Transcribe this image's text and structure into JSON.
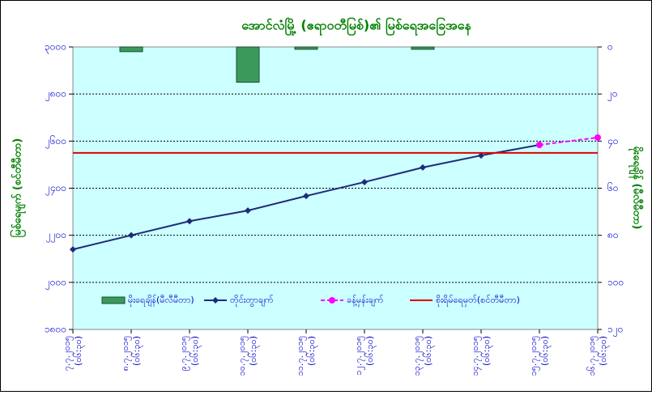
{
  "chart_data": {
    "type": "combo",
    "title": "အောင်လံမြို့ (ဧရာဝတီမြစ်)၏ မြစ်ရေအခြေအနေ",
    "y_label": "မြစ်ရေမျက် (စင်တီမီတာ)",
    "y2_label": "မိုးရေချိန် (မီလီမီတာ)",
    "categories": [
      "၇.၇.၂၀၁၅ (၀၆:၃၀)",
      "၈.၇.၂၀၁၅ (၀၆:၃၀)",
      "၉.၇.၂၀၁၅ (၀၆:၃၀)",
      "၁၀.၇.၂၀၁၅ (၀၆:၃၀)",
      "၁၁.၇.၂၀၁၅ (၀၆:၃၀)",
      "၁၂.၇.၂၀၁၅ (၀၆:၃၀)",
      "၁၃.၇.၂၀၁၅ (၀၆:၃၀)",
      "၁၄.၇.၂၀၁၅ (၀၆:၃၀)",
      "၁၅.၇.၂၀၁၅ (၀၆:၃၀)",
      "၁၆.၇.၂၀၁၅ (၀၆:၃၀)"
    ],
    "ylim": [
      1800,
      3000
    ],
    "yticks": [
      {
        "value": 1800,
        "label": "၁၈၀၀"
      },
      {
        "value": 2000,
        "label": "၂၀၀၀"
      },
      {
        "value": 2200,
        "label": "၂၂၀၀"
      },
      {
        "value": 2400,
        "label": "၂၄၀၀"
      },
      {
        "value": 2600,
        "label": "၂၆၀၀"
      },
      {
        "value": 2800,
        "label": "၂၈၀၀"
      },
      {
        "value": 3000,
        "label": "၃၀၀၀"
      }
    ],
    "y2lim": [
      120,
      0
    ],
    "y2ticks": [
      {
        "value": 0,
        "label": "၀"
      },
      {
        "value": 20,
        "label": "၂၀"
      },
      {
        "value": 40,
        "label": "၄၀"
      },
      {
        "value": 60,
        "label": "၆၀"
      },
      {
        "value": 80,
        "label": "၈၀"
      },
      {
        "value": 100,
        "label": "၁၀၀"
      },
      {
        "value": 120,
        "label": "၁၂၀"
      }
    ],
    "grid": true,
    "series": [
      {
        "name": "မိုးရေချိန်(မီလီမီတာ)",
        "type": "bar",
        "axis": "y2",
        "color": "#3a9a5c",
        "values": [
          null,
          2,
          null,
          15,
          1,
          null,
          1,
          null,
          null,
          null
        ]
      },
      {
        "name": "တိုင်းတွာချက်",
        "type": "line",
        "marker": "diamond",
        "color": "#1f2a7a",
        "values": [
          2140,
          2200,
          2260,
          2305,
          2367,
          2426,
          2488,
          2539,
          2584,
          null
        ]
      },
      {
        "name": "ခန့်မှန်းချက်",
        "type": "line",
        "marker": "circle",
        "dashed": true,
        "color": "#ff00ff",
        "values": [
          null,
          null,
          null,
          null,
          null,
          null,
          null,
          null,
          2584,
          2615
        ]
      },
      {
        "name": "စိုးရိမ်ရေမှတ်(စင်တီမီတာ)",
        "type": "hline",
        "color": "#e00000",
        "value": 2550
      }
    ]
  }
}
